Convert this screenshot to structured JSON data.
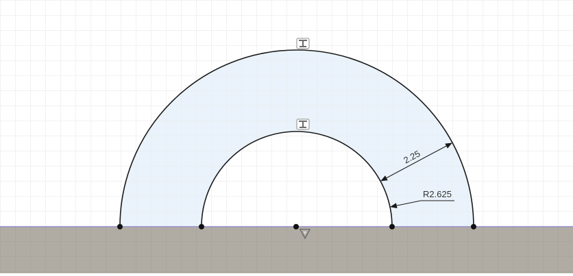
{
  "sketch": {
    "dimensions": {
      "thickness_label": "2.25",
      "radius_label": "R2.625"
    },
    "icons": {
      "tangent_constraint": "tangent-constraint-icon",
      "fix_constraint": "fix-constraint-icon"
    },
    "colors": {
      "background": "#ffffff",
      "grid_minor": "#e6e6e6",
      "profile_fill": "#eaf3fb",
      "sketch_line": "#1a1a1a",
      "ground_fill": "#b0aca3",
      "ground_edge": "#9a8fd0"
    }
  }
}
